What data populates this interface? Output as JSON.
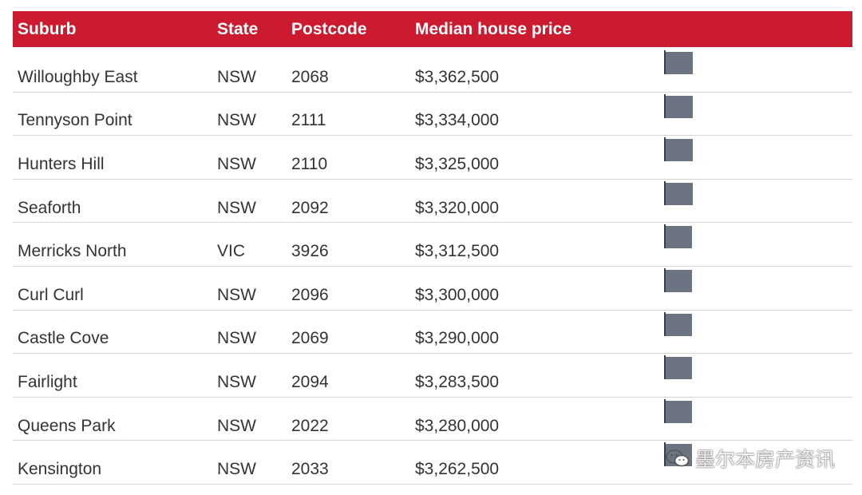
{
  "table": {
    "headers": {
      "suburb": "Suburb",
      "state": "State",
      "postcode": "Postcode",
      "price": "Median house price"
    },
    "rows": [
      {
        "suburb": "Willoughby East",
        "state": "NSW",
        "postcode": "2068",
        "price": "$3,362,500"
      },
      {
        "suburb": "Tennyson Point",
        "state": "NSW",
        "postcode": "2111",
        "price": "$3,334,000"
      },
      {
        "suburb": "Hunters Hill",
        "state": "NSW",
        "postcode": "2110",
        "price": "$3,325,000"
      },
      {
        "suburb": "Seaforth",
        "state": "NSW",
        "postcode": "2092",
        "price": "$3,320,000"
      },
      {
        "suburb": "Merricks North",
        "state": "VIC",
        "postcode": "3926",
        "price": "$3,312,500"
      },
      {
        "suburb": "Curl Curl",
        "state": "NSW",
        "postcode": "2096",
        "price": "$3,300,000"
      },
      {
        "suburb": "Castle Cove",
        "state": "NSW",
        "postcode": "2069",
        "price": "$3,290,000"
      },
      {
        "suburb": "Fairlight",
        "state": "NSW",
        "postcode": "2094",
        "price": "$3,283,500"
      },
      {
        "suburb": "Queens Park",
        "state": "NSW",
        "postcode": "2022",
        "price": "$3,280,000"
      },
      {
        "suburb": "Kensington",
        "state": "NSW",
        "postcode": "2033",
        "price": "$3,262,500"
      }
    ]
  },
  "chart_data": {
    "type": "bar",
    "orientation": "horizontal",
    "categories": [
      "Willoughby East",
      "Tennyson Point",
      "Hunters Hill",
      "Seaforth",
      "Merricks North",
      "Curl Curl",
      "Castle Cove",
      "Fairlight",
      "Queens Park",
      "Kensington"
    ],
    "values": [
      3362500,
      3334000,
      3325000,
      3320000,
      3312500,
      3300000,
      3290000,
      3283500,
      3280000,
      3262500
    ],
    "title": "",
    "xlabel": "",
    "ylabel": "",
    "grid": false
  },
  "watermark": {
    "text": "墨尔本房产资讯",
    "icon": "wechat-icon"
  },
  "colors": {
    "header_bg": "#cc1b30",
    "bar": "#6b7480"
  }
}
